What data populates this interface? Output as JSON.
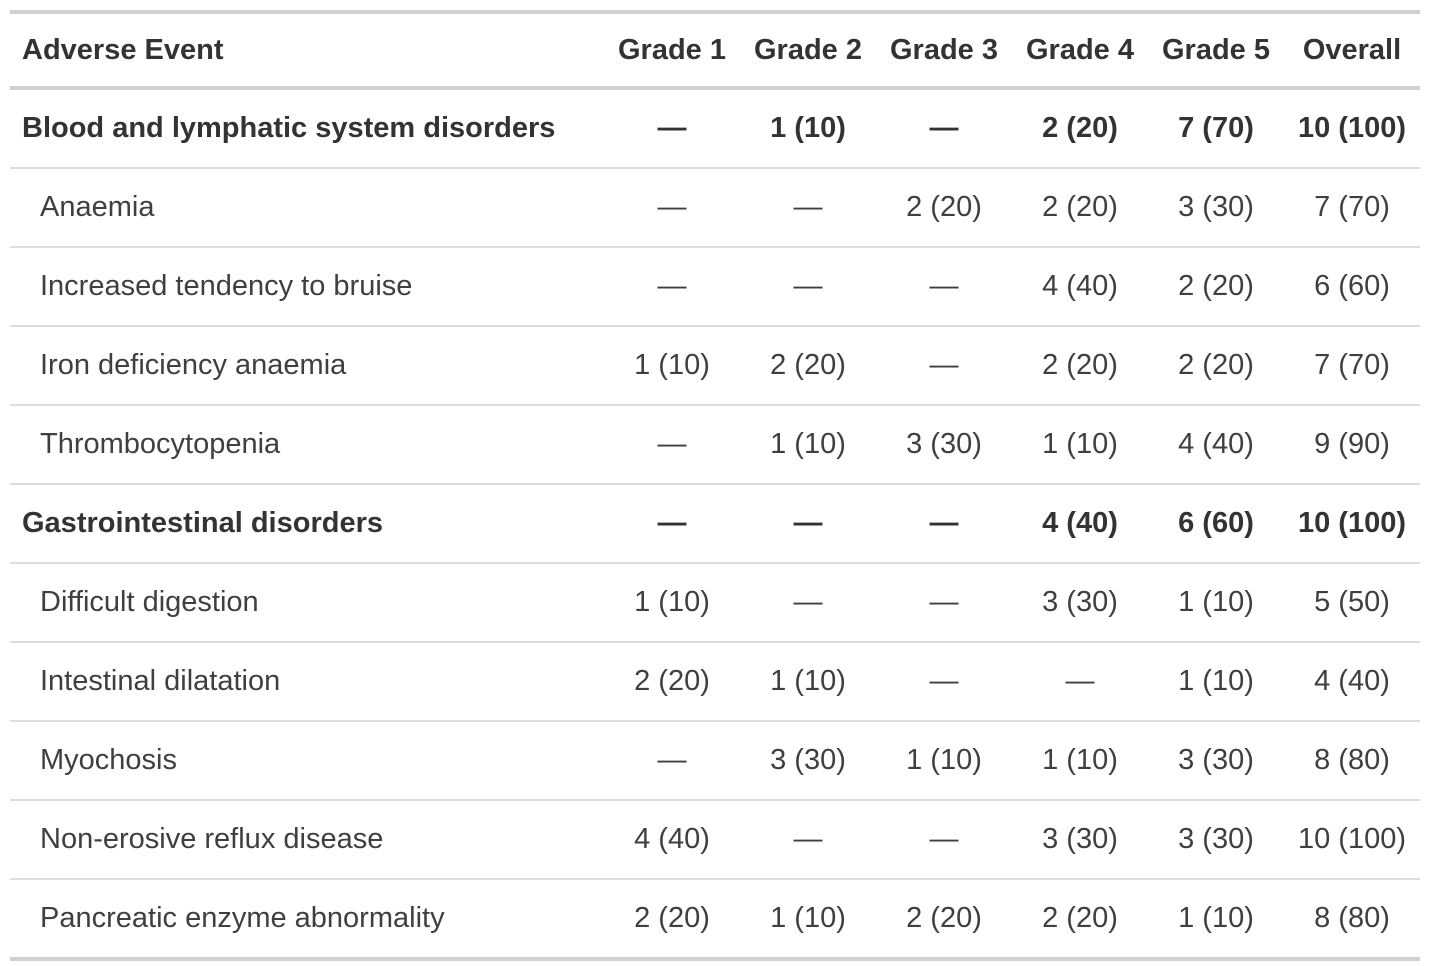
{
  "table": {
    "columns": [
      {
        "label": "Adverse Event"
      },
      {
        "label": "Grade 1"
      },
      {
        "label": "Grade 2"
      },
      {
        "label": "Grade 3"
      },
      {
        "label": "Grade 4"
      },
      {
        "label": "Grade 5"
      },
      {
        "label": "Overall"
      }
    ],
    "rows": [
      {
        "label": "Blood and lymphatic system disorders",
        "category": true,
        "values": [
          "—",
          "1 (10)",
          "—",
          "2 (20)",
          "7 (70)",
          "10 (100)"
        ]
      },
      {
        "label": "Anaemia",
        "category": false,
        "values": [
          "—",
          "—",
          "2 (20)",
          "2 (20)",
          "3 (30)",
          "7 (70)"
        ]
      },
      {
        "label": "Increased tendency to bruise",
        "category": false,
        "values": [
          "—",
          "—",
          "—",
          "4 (40)",
          "2 (20)",
          "6 (60)"
        ]
      },
      {
        "label": "Iron deficiency anaemia",
        "category": false,
        "values": [
          "1 (10)",
          "2 (20)",
          "—",
          "2 (20)",
          "2 (20)",
          "7 (70)"
        ]
      },
      {
        "label": "Thrombocytopenia",
        "category": false,
        "values": [
          "—",
          "1 (10)",
          "3 (30)",
          "1 (10)",
          "4 (40)",
          "9 (90)"
        ]
      },
      {
        "label": "Gastrointestinal disorders",
        "category": true,
        "values": [
          "—",
          "—",
          "—",
          "4 (40)",
          "6 (60)",
          "10 (100)"
        ]
      },
      {
        "label": "Difficult digestion",
        "category": false,
        "values": [
          "1 (10)",
          "—",
          "—",
          "3 (30)",
          "1 (10)",
          "5 (50)"
        ]
      },
      {
        "label": "Intestinal dilatation",
        "category": false,
        "values": [
          "2 (20)",
          "1 (10)",
          "—",
          "—",
          "1 (10)",
          "4 (40)"
        ]
      },
      {
        "label": "Myochosis",
        "category": false,
        "values": [
          "—",
          "3 (30)",
          "1 (10)",
          "1 (10)",
          "3 (30)",
          "8 (80)"
        ]
      },
      {
        "label": "Non-erosive reflux disease",
        "category": false,
        "values": [
          "4 (40)",
          "—",
          "—",
          "3 (30)",
          "3 (30)",
          "10 (100)"
        ]
      },
      {
        "label": "Pancreatic enzyme abnormality",
        "category": false,
        "values": [
          "2 (20)",
          "1 (10)",
          "2 (20)",
          "2 (20)",
          "1 (10)",
          "8 (80)"
        ]
      }
    ]
  },
  "colors": {
    "text_regular": "#3f3f3f",
    "text_bold": "#333333",
    "border_thick": "#d1d1d1",
    "border_thin": "#dcdcdc",
    "background": "#ffffff"
  }
}
